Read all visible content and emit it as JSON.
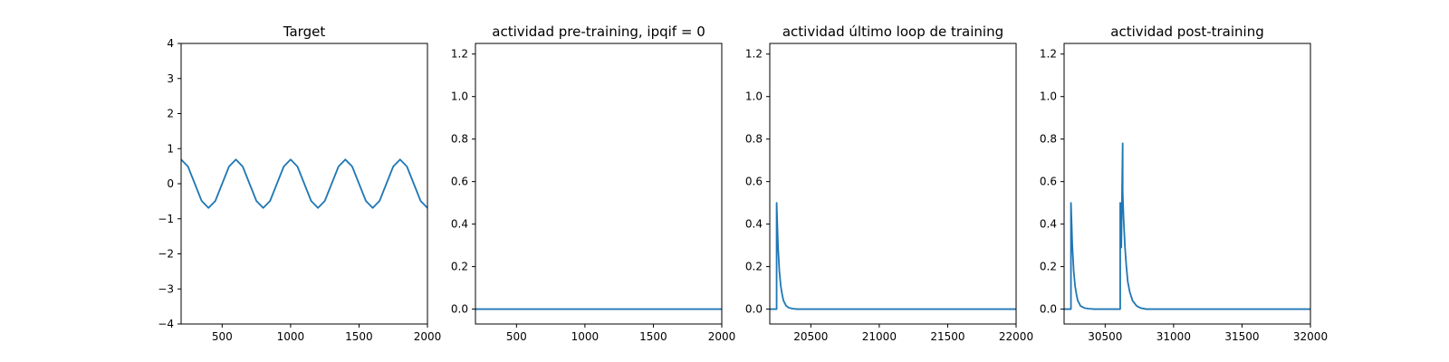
{
  "chart_data": [
    {
      "type": "line",
      "title": "Target",
      "xlim": [
        200,
        2000
      ],
      "ylim": [
        -4,
        4
      ],
      "xticks": [
        500,
        1000,
        1500,
        2000
      ],
      "yticks": [
        -4,
        -3,
        -2,
        -1,
        0,
        1,
        2,
        3,
        4
      ],
      "series": [
        {
          "color": "#1f77b4",
          "x": [
            200,
            250,
            300,
            350,
            400,
            450,
            500,
            550,
            600,
            650,
            700,
            750,
            800,
            850,
            900,
            950,
            1000,
            1050,
            1100,
            1150,
            1200,
            1250,
            1300,
            1350,
            1400,
            1450,
            1500,
            1550,
            1600,
            1650,
            1700,
            1750,
            1800,
            1850,
            1900,
            1950,
            2000
          ],
          "y": [
            0.69,
            0.49,
            0.0,
            -0.49,
            -0.69,
            -0.49,
            0.0,
            0.49,
            0.69,
            0.49,
            0.0,
            -0.49,
            -0.69,
            -0.49,
            0.0,
            0.49,
            0.69,
            0.49,
            0.0,
            -0.49,
            -0.69,
            -0.49,
            0.0,
            0.49,
            0.69,
            0.49,
            0.0,
            -0.49,
            -0.69,
            -0.49,
            0.0,
            0.49,
            0.69,
            0.49,
            0.0,
            -0.49,
            -0.69
          ]
        }
      ]
    },
    {
      "type": "line",
      "title": "actividad pre-training, ipqif = 0",
      "xlim": [
        200,
        2000
      ],
      "ylim": [
        -0.07,
        1.25
      ],
      "xticks": [
        500,
        1000,
        1500,
        2000
      ],
      "yticks": [
        0.0,
        0.2,
        0.4,
        0.6,
        0.8,
        1.0,
        1.2
      ],
      "series": [
        {
          "color": "#1f77b4",
          "x": [
            200,
            2000
          ],
          "y": [
            0,
            0
          ]
        }
      ]
    },
    {
      "type": "line",
      "title": "actividad último loop de training",
      "xlim": [
        20200,
        22000
      ],
      "ylim": [
        -0.07,
        1.25
      ],
      "xticks": [
        20500,
        21000,
        21500,
        22000
      ],
      "yticks": [
        0.0,
        0.2,
        0.4,
        0.6,
        0.8,
        1.0,
        1.2
      ],
      "series": [
        {
          "color": "#1f77b4",
          "x": [
            20200,
            20250,
            20250,
            20260,
            20270,
            20280,
            20290,
            20300,
            20320,
            20340,
            20370,
            20400,
            22000
          ],
          "y": [
            0,
            0,
            0.5,
            0.3,
            0.18,
            0.11,
            0.07,
            0.04,
            0.015,
            0.006,
            0.002,
            0,
            0
          ]
        }
      ]
    },
    {
      "type": "line",
      "title": "actividad post-training",
      "xlim": [
        30200,
        32000
      ],
      "ylim": [
        -0.07,
        1.25
      ],
      "xticks": [
        30500,
        31000,
        31500,
        32000
      ],
      "yticks": [
        0.0,
        0.2,
        0.4,
        0.6,
        0.8,
        1.0,
        1.2
      ],
      "series": [
        {
          "color": "#1f77b4",
          "x": [
            30200,
            30250,
            30250,
            30260,
            30270,
            30280,
            30290,
            30300,
            30320,
            30350,
            30380,
            30420,
            30610,
            30610,
            30618,
            30628,
            30628,
            30635,
            30645,
            30655,
            30665,
            30680,
            30700,
            30730,
            30760,
            30800,
            32000
          ],
          "y": [
            0,
            0,
            0.5,
            0.3,
            0.18,
            0.11,
            0.07,
            0.04,
            0.015,
            0.005,
            0.002,
            0,
            0,
            0.5,
            0.29,
            0.78,
            0.55,
            0.42,
            0.29,
            0.2,
            0.13,
            0.08,
            0.04,
            0.015,
            0.005,
            0,
            0
          ]
        }
      ]
    }
  ]
}
